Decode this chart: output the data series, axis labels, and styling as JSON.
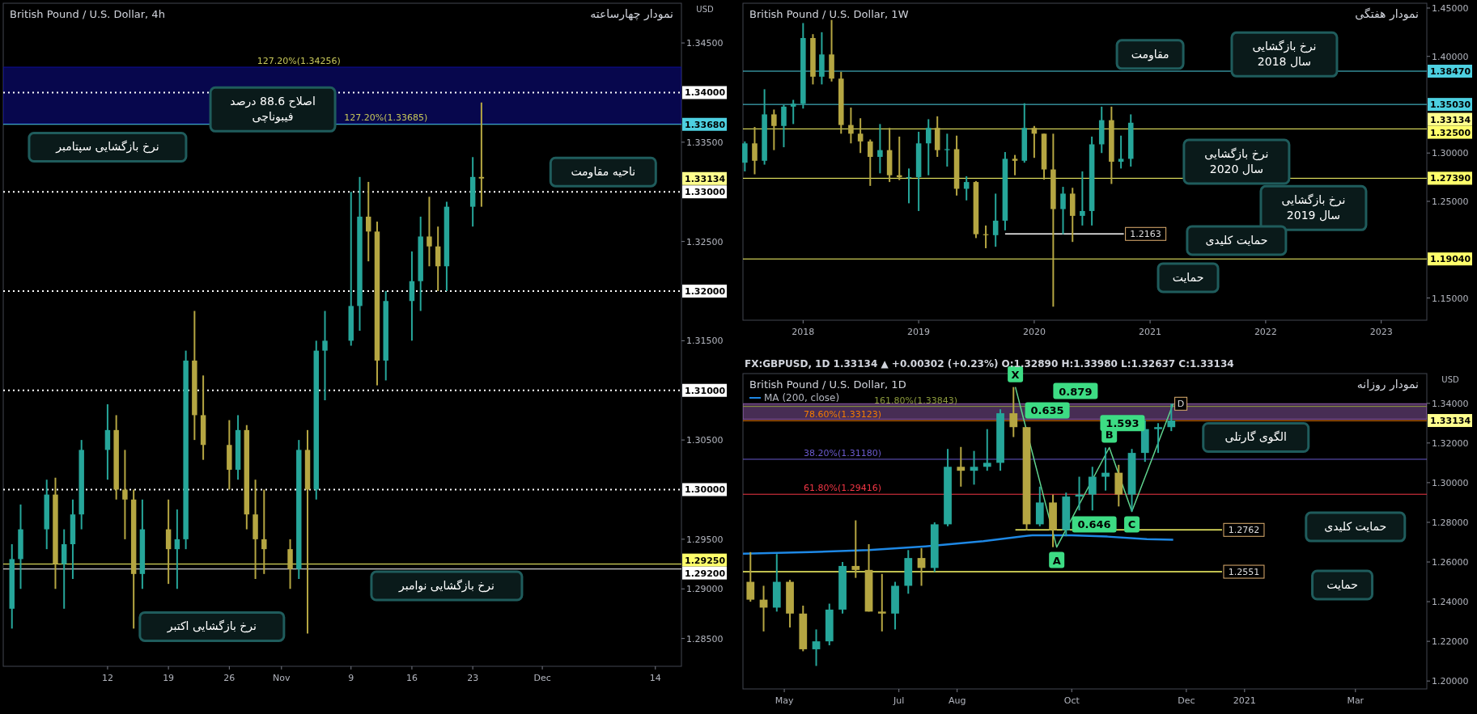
{
  "chart_data": [
    {
      "type": "candlestick",
      "title": "British Pound / U.S. Dollar, 4h",
      "subtitle": "نمودار چهارساعته",
      "ylabel": "USD",
      "x": [
        "2020-10-01",
        "2020-10-02",
        "2020-10-05",
        "2020-10-06",
        "2020-10-07",
        "2020-10-08",
        "2020-10-09",
        "2020-10-12",
        "2020-10-13",
        "2020-10-14",
        "2020-10-15",
        "2020-10-16",
        "2020-10-19",
        "2020-10-20",
        "2020-10-21",
        "2020-10-22",
        "2020-10-23",
        "2020-10-26",
        "2020-10-27",
        "2020-10-28",
        "2020-10-29",
        "2020-10-30",
        "2020-11-02",
        "2020-11-03",
        "2020-11-04",
        "2020-11-05",
        "2020-11-06",
        "2020-11-09",
        "2020-11-10",
        "2020-11-11",
        "2020-11-12",
        "2020-11-13",
        "2020-11-16",
        "2020-11-17",
        "2020-11-18",
        "2020-11-19",
        "2020-11-20",
        "2020-11-23",
        "2020-11-24"
      ],
      "ohlc": [
        [
          1.288,
          1.2945,
          1.286,
          1.293
        ],
        [
          1.293,
          1.2985,
          1.29,
          1.296
        ],
        [
          1.296,
          1.301,
          1.294,
          1.2995
        ],
        [
          1.2995,
          1.3012,
          1.29,
          1.2925
        ],
        [
          1.2925,
          1.296,
          1.288,
          1.2945
        ],
        [
          1.2945,
          1.299,
          1.291,
          1.2975
        ],
        [
          1.2975,
          1.305,
          1.296,
          1.304
        ],
        [
          1.304,
          1.3086,
          1.301,
          1.306
        ],
        [
          1.306,
          1.3075,
          1.299,
          1.3
        ],
        [
          1.3,
          1.304,
          1.295,
          1.299
        ],
        [
          1.299,
          1.3,
          1.286,
          1.2915
        ],
        [
          1.2915,
          1.299,
          1.29,
          1.296
        ],
        [
          1.296,
          1.299,
          1.2905,
          1.294
        ],
        [
          1.294,
          1.298,
          1.29,
          1.295
        ],
        [
          1.295,
          1.314,
          1.294,
          1.313
        ],
        [
          1.313,
          1.318,
          1.305,
          1.3075
        ],
        [
          1.3075,
          1.3115,
          1.303,
          1.3045
        ],
        [
          1.3045,
          1.307,
          1.3,
          1.302
        ],
        [
          1.302,
          1.3075,
          1.301,
          1.306
        ],
        [
          1.306,
          1.3065,
          1.296,
          1.2975
        ],
        [
          1.2975,
          1.301,
          1.291,
          1.295
        ],
        [
          1.295,
          1.3,
          1.2915,
          1.294
        ],
        [
          1.294,
          1.295,
          1.29,
          1.292
        ],
        [
          1.292,
          1.305,
          1.291,
          1.304
        ],
        [
          1.304,
          1.306,
          1.2855,
          1.3
        ],
        [
          1.3,
          1.315,
          1.299,
          1.314
        ],
        [
          1.314,
          1.318,
          1.309,
          1.315
        ],
        [
          1.315,
          1.33,
          1.3145,
          1.3185
        ],
        [
          1.3185,
          1.3315,
          1.316,
          1.3275
        ],
        [
          1.3275,
          1.331,
          1.323,
          1.326
        ],
        [
          1.326,
          1.327,
          1.3105,
          1.313
        ],
        [
          1.313,
          1.32,
          1.311,
          1.319
        ],
        [
          1.319,
          1.324,
          1.315,
          1.321
        ],
        [
          1.321,
          1.3275,
          1.318,
          1.3255
        ],
        [
          1.3255,
          1.3295,
          1.3225,
          1.3245
        ],
        [
          1.3245,
          1.3265,
          1.32,
          1.3225
        ],
        [
          1.3225,
          1.329,
          1.32,
          1.3285
        ],
        [
          1.3285,
          1.3335,
          1.3265,
          1.3315
        ],
        [
          1.3315,
          1.339,
          1.3285,
          1.33134
        ]
      ],
      "colors": [
        "#26a69a",
        "#26a69a",
        "#26a69a",
        "#b5a642",
        "#26a69a",
        "#26a69a",
        "#26a69a",
        "#26a69a",
        "#b5a642",
        "#b5a642",
        "#b5a642",
        "#26a69a",
        "#b5a642",
        "#26a69a",
        "#26a69a",
        "#b5a642",
        "#b5a642",
        "#b5a642",
        "#26a69a",
        "#b5a642",
        "#b5a642",
        "#b5a642",
        "#b5a642",
        "#26a69a",
        "#b5a642",
        "#26a69a",
        "#26a69a",
        "#26a69a",
        "#26a69a",
        "#b5a642",
        "#b5a642",
        "#26a69a",
        "#26a69a",
        "#26a69a",
        "#b5a642",
        "#b5a642",
        "#26a69a",
        "#26a69a",
        "#b5a642"
      ],
      "xlim": [
        "2020-09-30",
        "2020-12-17"
      ],
      "xticks": [
        {
          "value": "2020-10-12",
          "label": "12"
        },
        {
          "value": "2020-10-19",
          "label": "19"
        },
        {
          "value": "2020-10-26",
          "label": "26"
        },
        {
          "value": "2020-11-01",
          "label": "Nov"
        },
        {
          "value": "2020-11-09",
          "label": "9"
        },
        {
          "value": "2020-11-16",
          "label": "16"
        },
        {
          "value": "2020-11-23",
          "label": "23"
        },
        {
          "value": "2020-12-01",
          "label": "Dec"
        },
        {
          "value": "2020-12-14",
          "label": "14"
        }
      ],
      "ylim": [
        1.2822,
        1.349
      ],
      "yticks": [
        {
          "value": 1.285,
          "label": "1.28500"
        },
        {
          "value": 1.29,
          "label": "1.29000"
        },
        {
          "value": 1.295,
          "label": "1.29500"
        },
        {
          "value": 1.305,
          "label": "1.30500"
        },
        {
          "value": 1.315,
          "label": "1.31500"
        },
        {
          "value": 1.325,
          "label": "1.32500"
        },
        {
          "value": 1.335,
          "label": "1.33500"
        },
        {
          "value": 1.345,
          "label": "1.34500"
        }
      ],
      "bands": [
        {
          "axis": "y",
          "from": 1.33685,
          "to": 1.34256,
          "color": "#0d0d9a"
        }
      ],
      "ref_lines": [
        {
          "axis": "y",
          "value": 1.34,
          "label": "1.34000",
          "color": "#ffffff",
          "line_style": "dotted"
        },
        {
          "axis": "y",
          "value": 1.3368,
          "label": "1.33680",
          "color": "#4dd0e1",
          "line_style": "solid"
        },
        {
          "axis": "y",
          "value": 1.33,
          "label": "1.33000",
          "color": "#ffffff",
          "line_style": "dotted"
        },
        {
          "axis": "y",
          "value": 1.32,
          "label": "1.32000",
          "color": "#ffffff",
          "line_style": "dotted"
        },
        {
          "axis": "y",
          "value": 1.31,
          "label": "1.31000",
          "color": "#ffffff",
          "line_style": "dotted"
        },
        {
          "axis": "y",
          "value": 1.3,
          "label": "1.30000",
          "color": "#ffffff",
          "line_style": "dotted"
        },
        {
          "axis": "y",
          "value": 1.2925,
          "label": "1.29250",
          "color": "#ffff6b",
          "line_style": "solid"
        },
        {
          "axis": "y",
          "value": 1.292,
          "label": "1.29200",
          "color": "#ffffff",
          "line_style": "solid"
        }
      ],
      "annotations": [
        "1.33134",
        {
          "text": "127.20%(1.34256)",
          "x": "2020-11-03",
          "y": 1.34256
        },
        {
          "text": "127.20%(1.33685)",
          "x": "2020-11-13",
          "y": 1.33685
        },
        "نرخ بازگشایی سپتامبر",
        "اصلاح 88.6 درصد\nفیبوناچی",
        "ناحیه مقاومت",
        "نرخ بازگشایی اکتبر",
        "نرخ بازگشایی نوامبر"
      ]
    },
    {
      "type": "candlestick",
      "title": "British Pound / U.S. Dollar, 1W",
      "subtitle": "نمودار هفتگی",
      "x": [
        "2017-07",
        "2017-08",
        "2017-09",
        "2017-10",
        "2017-11",
        "2017-12",
        "2018-01",
        "2018-02",
        "2018-03",
        "2018-04",
        "2018-05",
        "2018-06",
        "2018-07",
        "2018-08",
        "2018-09",
        "2018-10",
        "2018-11",
        "2018-12",
        "2019-01",
        "2019-02",
        "2019-03",
        "2019-04",
        "2019-05",
        "2019-06",
        "2019-07",
        "2019-08",
        "2019-09",
        "2019-10",
        "2019-11",
        "2019-12",
        "2020-01",
        "2020-02",
        "2020-03",
        "2020-04",
        "2020-05",
        "2020-06",
        "2020-07",
        "2020-08",
        "2020-09",
        "2020-10",
        "2020-11"
      ],
      "ohlc": [
        [
          1.29,
          1.312,
          1.281,
          1.31
        ],
        [
          1.31,
          1.327,
          1.278,
          1.292
        ],
        [
          1.292,
          1.366,
          1.288,
          1.34
        ],
        [
          1.34,
          1.345,
          1.303,
          1.328
        ],
        [
          1.328,
          1.35,
          1.306,
          1.348
        ],
        [
          1.348,
          1.355,
          1.33,
          1.351
        ],
        [
          1.351,
          1.4345,
          1.346,
          1.419
        ],
        [
          1.419,
          1.423,
          1.371,
          1.379
        ],
        [
          1.379,
          1.425,
          1.371,
          1.402
        ],
        [
          1.402,
          1.4377,
          1.374,
          1.377
        ],
        [
          1.377,
          1.384,
          1.32,
          1.329
        ],
        [
          1.329,
          1.347,
          1.31,
          1.32
        ],
        [
          1.32,
          1.336,
          1.3,
          1.312
        ],
        [
          1.312,
          1.314,
          1.266,
          1.296
        ],
        [
          1.296,
          1.33,
          1.279,
          1.303
        ],
        [
          1.303,
          1.326,
          1.27,
          1.277
        ],
        [
          1.277,
          1.317,
          1.272,
          1.275
        ],
        [
          1.275,
          1.284,
          1.248,
          1.275
        ],
        [
          1.275,
          1.322,
          1.24,
          1.31
        ],
        [
          1.31,
          1.335,
          1.277,
          1.326
        ],
        [
          1.326,
          1.338,
          1.296,
          1.303
        ],
        [
          1.303,
          1.32,
          1.286,
          1.304
        ],
        [
          1.304,
          1.318,
          1.256,
          1.263
        ],
        [
          1.263,
          1.276,
          1.251,
          1.27
        ],
        [
          1.27,
          1.271,
          1.212,
          1.216
        ],
        [
          1.216,
          1.225,
          1.2015,
          1.215
        ],
        [
          1.215,
          1.258,
          1.203,
          1.23
        ],
        [
          1.23,
          1.301,
          1.22,
          1.294
        ],
        [
          1.294,
          1.298,
          1.277,
          1.292
        ],
        [
          1.292,
          1.3515,
          1.29,
          1.326
        ],
        [
          1.326,
          1.328,
          1.295,
          1.32
        ],
        [
          1.32,
          1.32,
          1.2725,
          1.283
        ],
        [
          1.283,
          1.32,
          1.141,
          1.242
        ],
        [
          1.242,
          1.265,
          1.216,
          1.258
        ],
        [
          1.258,
          1.264,
          1.208,
          1.235
        ],
        [
          1.235,
          1.281,
          1.225,
          1.24
        ],
        [
          1.24,
          1.317,
          1.225,
          1.309
        ],
        [
          1.309,
          1.348,
          1.3,
          1.334
        ],
        [
          1.334,
          1.348,
          1.268,
          1.291
        ],
        [
          1.291,
          1.318,
          1.284,
          1.294
        ],
        [
          1.294,
          1.34,
          1.286,
          1.33134
        ]
      ],
      "colors": [
        "#26a69a",
        "#b5a642",
        "#26a69a",
        "#b5a642",
        "#26a69a",
        "#26a69a",
        "#26a69a",
        "#b5a642",
        "#26a69a",
        "#b5a642",
        "#b5a642",
        "#b5a642",
        "#b5a642",
        "#b5a642",
        "#26a69a",
        "#b5a642",
        "#b5a642",
        "#26a69a",
        "#26a69a",
        "#26a69a",
        "#b5a642",
        "#26a69a",
        "#b5a642",
        "#26a69a",
        "#b5a642",
        "#b5a642",
        "#26a69a",
        "#26a69a",
        "#b5a642",
        "#26a69a",
        "#b5a642",
        "#b5a642",
        "#b5a642",
        "#26a69a",
        "#b5a642",
        "#26a69a",
        "#26a69a",
        "#26a69a",
        "#b5a642",
        "#26a69a",
        "#26a69a"
      ],
      "xlim": [
        "2017-06-25",
        "2023-05-25"
      ],
      "xticks": [
        {
          "value": "2018-01-01",
          "label": "2018"
        },
        {
          "value": "2019-01-01",
          "label": "2019"
        },
        {
          "value": "2020-01-01",
          "label": "2020"
        },
        {
          "value": "2021-01-01",
          "label": "2021"
        },
        {
          "value": "2022-01-01",
          "label": "2022"
        },
        {
          "value": "2023-01-01",
          "label": "2023"
        }
      ],
      "ylim": [
        1.127,
        1.455
      ],
      "yticks": [
        {
          "value": 1.15,
          "label": "1.15000"
        },
        {
          "value": 1.25,
          "label": "1.25000"
        },
        {
          "value": 1.3,
          "label": "1.30000"
        },
        {
          "value": 1.4,
          "label": "1.40000"
        },
        {
          "value": 1.45,
          "label": "1.45000"
        }
      ],
      "series": [
        {
          "type": "line",
          "color": "#ffffff",
          "x": [
            "2019-10-01",
            "2020-10-10"
          ],
          "values": [
            1.2163,
            1.2163
          ]
        }
      ],
      "ref_lines": [
        {
          "axis": "y",
          "value": 1.3847,
          "label": "1.38470",
          "color": "#4dd0e1",
          "line_style": "solid"
        },
        {
          "axis": "y",
          "value": 1.3503,
          "label": "1.35030",
          "color": "#4dd0e1",
          "line_style": "solid"
        },
        {
          "axis": "y",
          "value": 1.325,
          "label": "1.32500",
          "color": "#ffff6b",
          "line_style": "solid"
        },
        {
          "axis": "y",
          "value": 1.2739,
          "label": "1.27390",
          "color": "#ffff6b",
          "line_style": "solid"
        },
        {
          "axis": "y",
          "value": 1.1904,
          "label": "1.19040",
          "color": "#ffff6b",
          "line_style": "solid"
        }
      ],
      "annotations": [
        "1.33134",
        {
          "text": "1.2163",
          "x": "2020-10-10",
          "y": 1.2163
        },
        "مقاومت",
        "نرخ بازگشایی\nسال 2018",
        "نرخ بازگشایی\nسال 2020",
        "نرخ بازگشایی\nسال 2019",
        "حمایت کلیدی",
        "حمایت"
      ]
    },
    {
      "type": "candlestick",
      "title": "British Pound / U.S. Dollar, 1D",
      "subtitle": "نمودار روزانه",
      "ylabel": "USD",
      "legend": "top left",
      "x": [
        "2020-04-13",
        "2020-04-20",
        "2020-04-27",
        "2020-05-04",
        "2020-05-11",
        "2020-05-18",
        "2020-05-25",
        "2020-06-01",
        "2020-06-08",
        "2020-06-15",
        "2020-06-22",
        "2020-06-29",
        "2020-07-06",
        "2020-07-13",
        "2020-07-20",
        "2020-07-27",
        "2020-08-03",
        "2020-08-10",
        "2020-08-17",
        "2020-08-24",
        "2020-08-31",
        "2020-09-07",
        "2020-09-14",
        "2020-09-21",
        "2020-09-28",
        "2020-10-05",
        "2020-10-12",
        "2020-10-19",
        "2020-10-26",
        "2020-11-02",
        "2020-11-09",
        "2020-11-16",
        "2020-11-23"
      ],
      "ohlc": [
        [
          1.25,
          1.265,
          1.24,
          1.241
        ],
        [
          1.241,
          1.248,
          1.225,
          1.237
        ],
        [
          1.237,
          1.264,
          1.235,
          1.25
        ],
        [
          1.25,
          1.251,
          1.227,
          1.234
        ],
        [
          1.234,
          1.238,
          1.215,
          1.216
        ],
        [
          1.216,
          1.226,
          1.2076,
          1.22
        ],
        [
          1.22,
          1.239,
          1.218,
          1.236
        ],
        [
          1.236,
          1.26,
          1.234,
          1.258
        ],
        [
          1.258,
          1.281,
          1.252,
          1.256
        ],
        [
          1.256,
          1.269,
          1.235,
          1.235
        ],
        [
          1.235,
          1.254,
          1.225,
          1.234
        ],
        [
          1.234,
          1.25,
          1.226,
          1.248
        ],
        [
          1.248,
          1.266,
          1.244,
          1.262
        ],
        [
          1.262,
          1.267,
          1.248,
          1.257
        ],
        [
          1.257,
          1.28,
          1.255,
          1.279
        ],
        [
          1.279,
          1.317,
          1.278,
          1.308
        ],
        [
          1.308,
          1.318,
          1.298,
          1.306
        ],
        [
          1.306,
          1.316,
          1.299,
          1.308
        ],
        [
          1.308,
          1.327,
          1.306,
          1.31
        ],
        [
          1.31,
          1.337,
          1.306,
          1.335
        ],
        [
          1.335,
          1.3482,
          1.323,
          1.328
        ],
        [
          1.328,
          1.328,
          1.276,
          1.279
        ],
        [
          1.279,
          1.298,
          1.278,
          1.29
        ],
        [
          1.29,
          1.294,
          1.2675,
          1.276
        ],
        [
          1.276,
          1.295,
          1.273,
          1.293
        ],
        [
          1.293,
          1.303,
          1.286,
          1.294
        ],
        [
          1.294,
          1.308,
          1.286,
          1.303
        ],
        [
          1.303,
          1.3177,
          1.296,
          1.305
        ],
        [
          1.305,
          1.309,
          1.288,
          1.294
        ],
        [
          1.294,
          1.317,
          1.2855,
          1.315
        ],
        [
          1.315,
          1.3315,
          1.3105,
          1.327
        ],
        [
          1.327,
          1.33,
          1.315,
          1.328
        ],
        [
          1.328,
          1.3398,
          1.326,
          1.33134
        ]
      ],
      "colors": [
        "#b5a642",
        "#b5a642",
        "#26a69a",
        "#b5a642",
        "#b5a642",
        "#26a69a",
        "#26a69a",
        "#26a69a",
        "#b5a642",
        "#b5a642",
        "#b5a642",
        "#26a69a",
        "#26a69a",
        "#b5a642",
        "#26a69a",
        "#26a69a",
        "#b5a642",
        "#26a69a",
        "#26a69a",
        "#26a69a",
        "#b5a642",
        "#b5a642",
        "#26a69a",
        "#b5a642",
        "#26a69a",
        "#26a69a",
        "#26a69a",
        "#26a69a",
        "#b5a642",
        "#26a69a",
        "#26a69a",
        "#26a69a",
        "#26a69a"
      ],
      "xlim": [
        "2020-04-09",
        "2021-04-08"
      ],
      "xticks": [
        {
          "value": "2020-05-01",
          "label": "May"
        },
        {
          "value": "2020-07-01",
          "label": "Jul"
        },
        {
          "value": "2020-08-01",
          "label": "Aug"
        },
        {
          "value": "2020-10-01",
          "label": "Oct"
        },
        {
          "value": "2020-12-01",
          "label": "Dec"
        },
        {
          "value": "2021-01-01",
          "label": "2021"
        },
        {
          "value": "2021-03-01",
          "label": "Mar"
        }
      ],
      "ylim": [
        1.196,
        1.355
      ],
      "yticks": [
        {
          "value": 1.2,
          "label": "1.20000"
        },
        {
          "value": 1.22,
          "label": "1.22000"
        },
        {
          "value": 1.24,
          "label": "1.24000"
        },
        {
          "value": 1.26,
          "label": "1.26000"
        },
        {
          "value": 1.28,
          "label": "1.28000"
        },
        {
          "value": 1.3,
          "label": "1.30000"
        },
        {
          "value": 1.32,
          "label": "1.32000"
        },
        {
          "value": 1.34,
          "label": "1.34000"
        }
      ],
      "series": [
        {
          "name": "MA (200, close)",
          "type": "line",
          "color": "#1e88e5",
          "x": [
            "2020-04-09",
            "2020-05-15",
            "2020-06-15",
            "2020-07-15",
            "2020-08-15",
            "2020-09-10",
            "2020-10-01",
            "2020-10-20",
            "2020-11-10",
            "2020-11-24"
          ],
          "values": [
            1.2642,
            1.265,
            1.266,
            1.2679,
            1.2705,
            1.2735,
            1.2735,
            1.2728,
            1.2715,
            1.2712
          ]
        },
        {
          "type": "line",
          "color": "#5fd38d",
          "x": [
            "2020-09-01",
            "2020-09-23",
            "2020-10-21",
            "2020-11-02",
            "2020-11-24"
          ],
          "values": [
            1.3482,
            1.2675,
            1.3177,
            1.2855,
            1.3398
          ]
        },
        {
          "type": "line",
          "color": "#ffff6b",
          "x": [
            "2020-09-01",
            "2020-12-20"
          ],
          "values": [
            1.2762,
            1.2762
          ]
        },
        {
          "type": "line",
          "color": "#ffff6b",
          "x": [
            "2020-04-09",
            "2020-12-20"
          ],
          "values": [
            1.2551,
            1.2551
          ]
        }
      ],
      "bands": [
        {
          "axis": "y",
          "from": 1.332,
          "to": 1.3398,
          "color": "#8e5aa8"
        }
      ],
      "ref_lines": [
        {
          "axis": "y",
          "value": 1.33843,
          "color": "#8c9a3c",
          "line_style": "solid"
        },
        {
          "axis": "y",
          "value": 1.33123,
          "color": "#f57c00",
          "line_style": "solid"
        },
        {
          "axis": "y",
          "value": 1.3118,
          "color": "#6a5acd",
          "line_style": "solid"
        },
        {
          "axis": "y",
          "value": 1.29416,
          "color": "#f23645",
          "line_style": "solid"
        }
      ],
      "annotations": [
        "FX:GBPUSD, 1D 1.33134 ▲ +0.00302 (+0.23%) O:1.32890 H:1.33980 L:1.32637 C:1.33134",
        "1.33134",
        {
          "text": "161.80%(1.33843)",
          "x": "2020-07-10",
          "y": 1.33843
        },
        {
          "text": "78.60%(1.33123)",
          "x": "2020-06-01",
          "y": 1.33123
        },
        {
          "text": "38.20%(1.31180)",
          "x": "2020-06-01",
          "y": 1.3118
        },
        {
          "text": "61.80%(1.29416)",
          "x": "2020-06-01",
          "y": 1.29416
        },
        {
          "text": "X",
          "x": "2020-09-01",
          "y": 1.3482
        },
        {
          "text": "A",
          "x": "2020-09-23",
          "y": 1.2675
        },
        {
          "text": "B",
          "x": "2020-10-21",
          "y": 1.3177
        },
        {
          "text": "C",
          "x": "2020-11-02",
          "y": 1.2855
        },
        {
          "text": "D",
          "x": "2020-11-24",
          "y": 1.3398
        },
        "0.879",
        "0.635",
        "1.593",
        "0.646",
        {
          "text": "1.2762",
          "x": "2020-12-20",
          "y": 1.2762
        },
        {
          "text": "1.2551",
          "x": "2020-12-20",
          "y": 1.2551
        },
        "الگوی گارتلی",
        "حمایت کلیدی",
        "حمایت"
      ]
    }
  ]
}
